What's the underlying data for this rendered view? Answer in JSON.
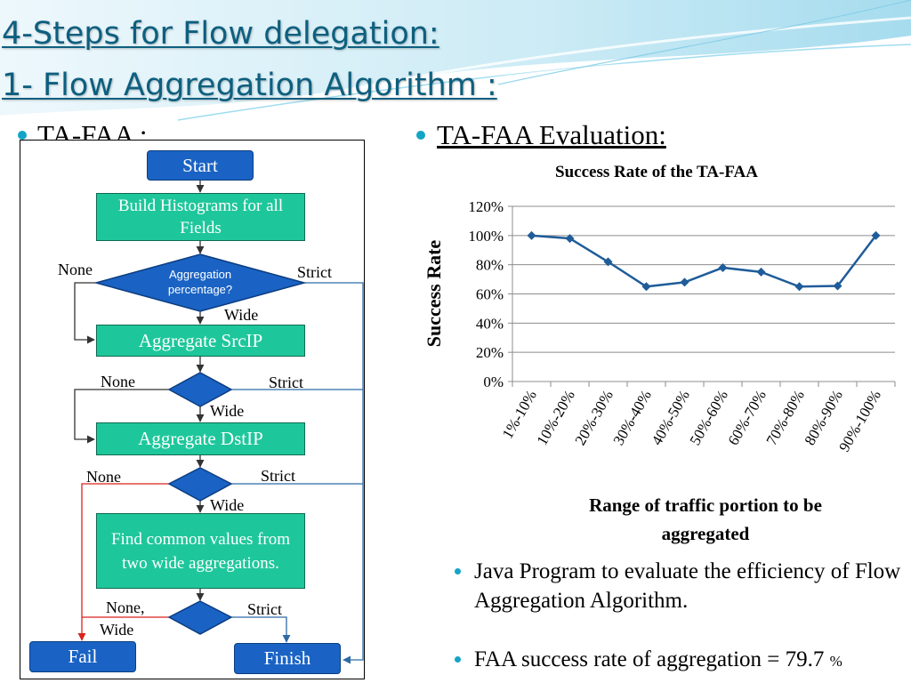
{
  "slide": {
    "title_line1": "4-Steps for Flow delegation:",
    "title_line2": "1- Flow Aggregation Algorithm :",
    "bullet_color": "#13a5c5",
    "title_color": "#0d5f7f"
  },
  "left": {
    "heading": "TA-FAA :"
  },
  "flowchart": {
    "start": "Start",
    "build": "Build Histograms for all Fields",
    "decision1": "Aggregation percentage?",
    "agg_src": "Aggregate SrcIP",
    "agg_dst": "Aggregate DstIP",
    "find": "Find common values from two wide aggregations.",
    "fail": "Fail",
    "finish": "Finish",
    "none": "None",
    "strict": "Strict",
    "wide": "Wide",
    "none_wide_1": "None,",
    "none_wide_2": "Wide",
    "box_green": "#1ec79b",
    "box_blue": "#1a63c4",
    "arrow_blue": "#2e6aa6",
    "arrow_red": "#d9231c"
  },
  "right": {
    "heading": "TA-FAA Evaluation:",
    "bullets": [
      "Java Program to evaluate the efficiency of Flow Aggregation Algorithm.",
      "FAA success rate of aggregation = 79.7 %"
    ],
    "bullet2_main": "FAA success rate of aggregation = 79.7",
    "bullet2_unit": "%"
  },
  "chart_data": {
    "type": "line",
    "title": "Success Rate of the TA-FAA",
    "xlabel": "Range of traffic portion to be aggregated",
    "ylabel": "Success Rate",
    "categories": [
      "1%-10%",
      "10%-20%",
      "20%-30%",
      "30%-40%",
      "40%-50%",
      "50%-60%",
      "60%-70%",
      "70%-80%",
      "80%-90%",
      "90%-100%"
    ],
    "series": [
      {
        "name": "Success Rate",
        "values": [
          100,
          98,
          82,
          65,
          68,
          78,
          75,
          65,
          65.5,
          100
        ]
      }
    ],
    "ylim": [
      0,
      120
    ],
    "yticks": [
      0,
      20,
      40,
      60,
      80,
      100,
      120
    ],
    "ytick_labels": [
      "0%",
      "20%",
      "40%",
      "60%",
      "80%",
      "100%",
      "120%"
    ],
    "grid": true,
    "legend": "none",
    "line_color": "#1f5c99"
  }
}
